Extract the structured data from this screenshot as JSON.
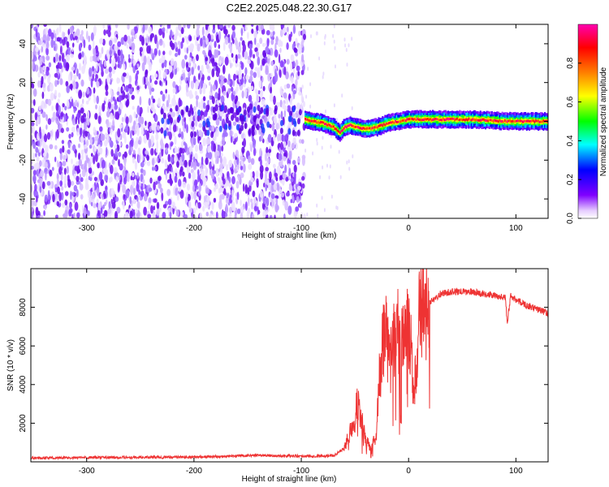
{
  "title": "C2E2.2025.048.22.30.G17",
  "chart_data": [
    {
      "type": "heatmap",
      "title": "C2E2.2025.048.22.30.G17",
      "xlabel": "Height of straight line (km)",
      "ylabel": "Frequency (Hz)",
      "xlim": [
        -352,
        130
      ],
      "ylim": [
        -50,
        50
      ],
      "x_ticks": [
        -300,
        -200,
        -100,
        0,
        100
      ],
      "y_ticks": [
        -40,
        -20,
        0,
        20,
        40
      ],
      "noise_region_x": [
        -352,
        -97
      ],
      "signal_centerline": {
        "x": [
          -97,
          -90,
          -80,
          -70,
          -65,
          -60,
          -55,
          -50,
          -40,
          -30,
          -20,
          -10,
          0,
          10,
          30,
          60,
          90,
          130
        ],
        "y": [
          1,
          0,
          -1,
          -3,
          -6,
          -3,
          -2,
          -3,
          -4,
          -3,
          -1,
          0,
          1,
          1,
          1,
          1,
          0,
          0
        ]
      },
      "colorbar": {
        "label": "Normalized spectral amplitude",
        "range": [
          0.0,
          1.0
        ],
        "ticks": [
          0.0,
          0.2,
          0.4,
          0.6,
          0.8
        ],
        "colormap": [
          "#ffffff",
          "#7f00ff",
          "#0000ff",
          "#00ffff",
          "#00ff00",
          "#ffff00",
          "#ff8000",
          "#ff0000",
          "#ff00b0"
        ]
      },
      "grid": false
    },
    {
      "type": "line",
      "xlabel": "Height of straight line (km)",
      "ylabel": "SNR (10 * v/v)",
      "xlim": [
        -352,
        130
      ],
      "ylim": [
        0,
        10000
      ],
      "x_ticks": [
        -300,
        -200,
        -100,
        0,
        100
      ],
      "y_ticks": [
        2000,
        4000,
        6000,
        8000
      ],
      "series": [
        {
          "color": "#ee3333",
          "x": [
            -352,
            -300,
            -250,
            -200,
            -170,
            -160,
            -140,
            -120,
            -110,
            -100,
            -80,
            -70,
            -60,
            -55,
            -50,
            -48,
            -45,
            -42,
            -40,
            -35,
            -30,
            -28,
            -25,
            -22,
            -20,
            -18,
            -15,
            -12,
            -10,
            -8,
            -5,
            -3,
            0,
            3,
            5,
            8,
            10,
            12,
            15,
            20,
            25,
            30,
            40,
            50,
            60,
            70,
            80,
            90,
            92,
            95,
            100,
            110,
            120,
            130
          ],
          "y": [
            200,
            220,
            230,
            250,
            280,
            300,
            350,
            300,
            320,
            300,
            300,
            320,
            700,
            1500,
            2300,
            3000,
            2400,
            1800,
            1200,
            600,
            1500,
            4000,
            5500,
            7000,
            6500,
            5000,
            6000,
            6500,
            7000,
            5500,
            6500,
            7000,
            6500,
            5500,
            3000,
            6000,
            7500,
            7800,
            8000,
            8300,
            8500,
            8700,
            8800,
            8800,
            8800,
            8700,
            8600,
            8500,
            7200,
            8600,
            8400,
            8100,
            7900,
            7700
          ]
        }
      ],
      "grid": false
    }
  ]
}
